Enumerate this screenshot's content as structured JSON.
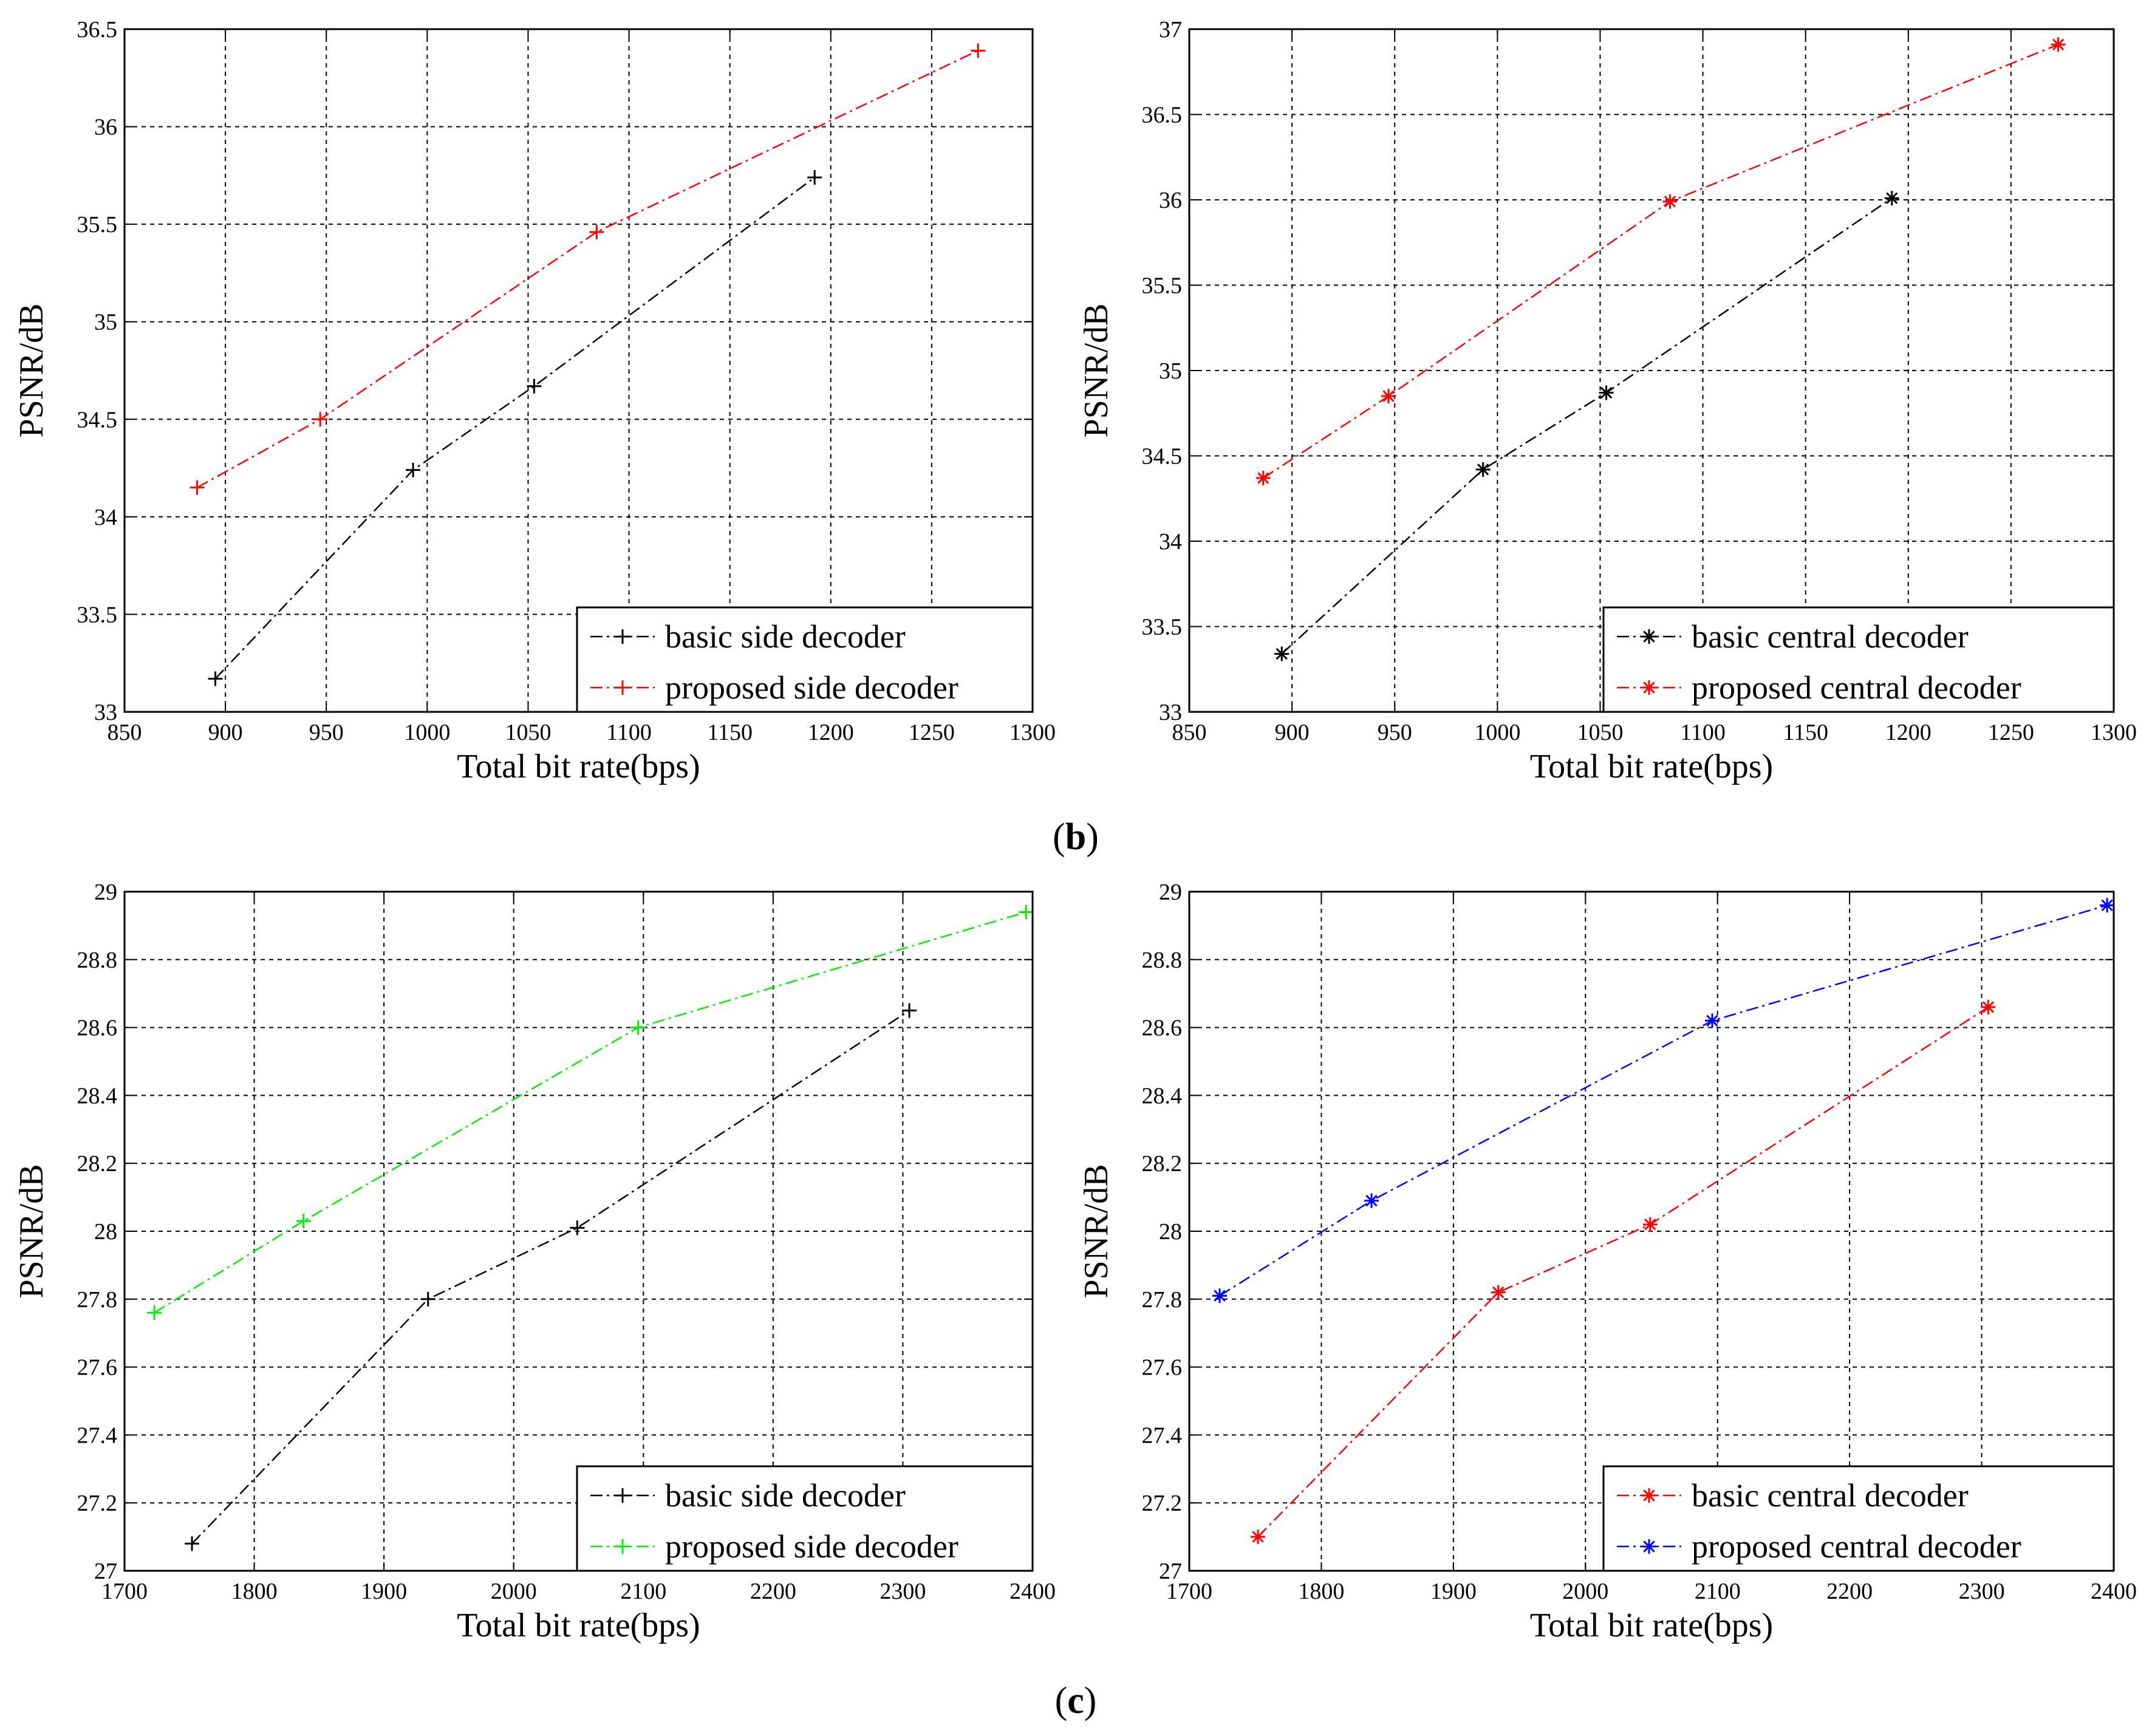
{
  "captions": {
    "b_label": "b",
    "c_label": "c"
  },
  "chart_data": [
    {
      "type": "line",
      "xlabel": "Total bit rate(bps)",
      "ylabel": "PSNR/dB",
      "xlim": [
        850,
        1300
      ],
      "ylim": [
        33,
        36.5
      ],
      "xticks": [
        850,
        900,
        950,
        1000,
        1050,
        1100,
        1150,
        1200,
        1250,
        1300
      ],
      "yticks": [
        33,
        33.5,
        34,
        34.5,
        35,
        35.5,
        36,
        36.5
      ],
      "grid": true,
      "legend_position": "bottom-right",
      "series": [
        {
          "name": "basic side decoder",
          "color": "#000000",
          "marker": "+",
          "x": [
            895,
            993,
            1053,
            1192
          ],
          "y": [
            33.17,
            34.24,
            34.67,
            35.74
          ]
        },
        {
          "name": "proposed side decoder",
          "color": "#ff0000",
          "marker": "+",
          "x": [
            886,
            947,
            1084,
            1273
          ],
          "y": [
            34.15,
            34.5,
            35.46,
            36.39
          ]
        }
      ]
    },
    {
      "type": "line",
      "xlabel": "Total bit rate(bps)",
      "ylabel": "PSNR/dB",
      "xlim": [
        850,
        1300
      ],
      "ylim": [
        33,
        37
      ],
      "xticks": [
        850,
        900,
        950,
        1000,
        1050,
        1100,
        1150,
        1200,
        1250,
        1300
      ],
      "yticks": [
        33,
        33.5,
        34,
        34.5,
        35,
        35.5,
        36,
        36.5,
        37
      ],
      "grid": true,
      "legend_position": "bottom-right",
      "series": [
        {
          "name": "basic central decoder",
          "color": "#000000",
          "marker": "*",
          "x": [
            895,
            993,
            1053,
            1192
          ],
          "y": [
            33.34,
            34.42,
            34.87,
            36.01
          ]
        },
        {
          "name": "proposed central decoder",
          "color": "#ff0000",
          "marker": "*",
          "x": [
            886,
            947,
            1084,
            1273
          ],
          "y": [
            34.37,
            34.85,
            35.99,
            36.91
          ]
        }
      ]
    },
    {
      "type": "line",
      "xlabel": "Total bit rate(bps)",
      "ylabel": "PSNR/dB",
      "xlim": [
        1700,
        2400
      ],
      "ylim": [
        27,
        29
      ],
      "xticks": [
        1700,
        1800,
        1900,
        2000,
        2100,
        2200,
        2300,
        2400
      ],
      "yticks": [
        27,
        27.2,
        27.4,
        27.6,
        27.8,
        28,
        28.2,
        28.4,
        28.6,
        28.8,
        29
      ],
      "grid": true,
      "legend_position": "bottom-right",
      "series": [
        {
          "name": "basic side decoder",
          "color": "#000000",
          "marker": "+",
          "x": [
            1752,
            1934,
            2049,
            2305
          ],
          "y": [
            27.08,
            27.8,
            28.01,
            28.65
          ]
        },
        {
          "name": "proposed side decoder",
          "color": "#00ee00",
          "marker": "+",
          "x": [
            1723,
            1838,
            2096,
            2395
          ],
          "y": [
            27.76,
            28.03,
            28.6,
            28.94
          ]
        }
      ]
    },
    {
      "type": "line",
      "xlabel": "Total bit rate(bps)",
      "ylabel": "PSNR/dB",
      "xlim": [
        1700,
        2400
      ],
      "ylim": [
        27,
        29
      ],
      "xticks": [
        1700,
        1800,
        1900,
        2000,
        2100,
        2200,
        2300,
        2400
      ],
      "yticks": [
        27,
        27.2,
        27.4,
        27.6,
        27.8,
        28,
        28.2,
        28.4,
        28.6,
        28.8,
        29
      ],
      "grid": true,
      "legend_position": "bottom-right",
      "series": [
        {
          "name": "basic central decoder",
          "color": "#ff0000",
          "marker": "*",
          "x": [
            1752,
            1934,
            2049,
            2305
          ],
          "y": [
            27.1,
            27.82,
            28.02,
            28.66
          ]
        },
        {
          "name": "proposed central decoder",
          "color": "#0000ff",
          "marker": "*",
          "x": [
            1723,
            1838,
            2096,
            2395
          ],
          "y": [
            27.81,
            28.09,
            28.62,
            28.96
          ]
        }
      ]
    }
  ]
}
